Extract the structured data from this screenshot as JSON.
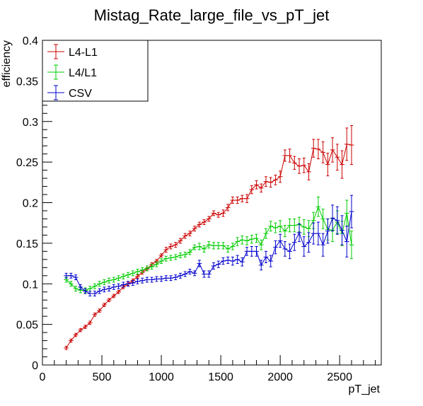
{
  "chart_data": {
    "type": "line",
    "title": "Mistag_Rate_large_file_vs_pT_jet",
    "xlabel": "pT_jet",
    "ylabel": "efficiency",
    "xlim": [
      0,
      2850
    ],
    "ylim": [
      0,
      0.4
    ],
    "x_ticks": [
      0,
      500,
      1000,
      1500,
      2000,
      2500
    ],
    "x_tick_labels": [
      "0",
      "500",
      "1000",
      "1500",
      "2000",
      "2500"
    ],
    "y_ticks": [
      0,
      0.05,
      0.1,
      0.15,
      0.2,
      0.25,
      0.3,
      0.35,
      0.4
    ],
    "y_tick_labels": [
      "0",
      "0.05",
      "0.1",
      "0.15",
      "0.2",
      "0.25",
      "0.3",
      "0.35",
      "0.4"
    ],
    "legend_position": "top-left",
    "grid": false,
    "x_bin_halfwidth": 20,
    "series": [
      {
        "name": "L4-L1",
        "color": "#cc0000",
        "points": [
          [
            200,
            0.021,
            0.002
          ],
          [
            240,
            0.03,
            0.002
          ],
          [
            280,
            0.037,
            0.002
          ],
          [
            320,
            0.043,
            0.002
          ],
          [
            360,
            0.047,
            0.002
          ],
          [
            400,
            0.052,
            0.002
          ],
          [
            440,
            0.062,
            0.002
          ],
          [
            480,
            0.067,
            0.002
          ],
          [
            520,
            0.074,
            0.002
          ],
          [
            560,
            0.08,
            0.002
          ],
          [
            600,
            0.085,
            0.002
          ],
          [
            640,
            0.09,
            0.002
          ],
          [
            680,
            0.096,
            0.002
          ],
          [
            720,
            0.1,
            0.002
          ],
          [
            760,
            0.104,
            0.002
          ],
          [
            800,
            0.109,
            0.002
          ],
          [
            840,
            0.114,
            0.002
          ],
          [
            880,
            0.118,
            0.002
          ],
          [
            920,
            0.124,
            0.002
          ],
          [
            960,
            0.128,
            0.002
          ],
          [
            1000,
            0.135,
            0.002
          ],
          [
            1040,
            0.142,
            0.003
          ],
          [
            1080,
            0.146,
            0.003
          ],
          [
            1120,
            0.148,
            0.003
          ],
          [
            1160,
            0.153,
            0.003
          ],
          [
            1200,
            0.159,
            0.003
          ],
          [
            1240,
            0.162,
            0.003
          ],
          [
            1280,
            0.168,
            0.003
          ],
          [
            1320,
            0.173,
            0.003
          ],
          [
            1360,
            0.176,
            0.003
          ],
          [
            1400,
            0.18,
            0.003
          ],
          [
            1440,
            0.187,
            0.003
          ],
          [
            1480,
            0.185,
            0.003
          ],
          [
            1520,
            0.187,
            0.004
          ],
          [
            1560,
            0.194,
            0.004
          ],
          [
            1600,
            0.203,
            0.004
          ],
          [
            1640,
            0.203,
            0.004
          ],
          [
            1680,
            0.205,
            0.004
          ],
          [
            1720,
            0.205,
            0.005
          ],
          [
            1760,
            0.216,
            0.005
          ],
          [
            1800,
            0.222,
            0.005
          ],
          [
            1840,
            0.218,
            0.005
          ],
          [
            1880,
            0.226,
            0.006
          ],
          [
            1920,
            0.225,
            0.006
          ],
          [
            1960,
            0.228,
            0.006
          ],
          [
            2000,
            0.232,
            0.007
          ],
          [
            2040,
            0.258,
            0.007
          ],
          [
            2080,
            0.258,
            0.008
          ],
          [
            2120,
            0.249,
            0.008
          ],
          [
            2160,
            0.245,
            0.009
          ],
          [
            2200,
            0.246,
            0.009
          ],
          [
            2240,
            0.238,
            0.01
          ],
          [
            2280,
            0.267,
            0.011
          ],
          [
            2320,
            0.266,
            0.012
          ],
          [
            2360,
            0.262,
            0.013
          ],
          [
            2400,
            0.247,
            0.014
          ],
          [
            2440,
            0.265,
            0.015
          ],
          [
            2480,
            0.256,
            0.016
          ],
          [
            2520,
            0.247,
            0.017
          ],
          [
            2560,
            0.272,
            0.02
          ],
          [
            2600,
            0.271,
            0.024
          ]
        ]
      },
      {
        "name": "L4/L1",
        "color": "#00cc00",
        "points": [
          [
            200,
            0.105,
            0.003
          ],
          [
            240,
            0.1,
            0.003
          ],
          [
            280,
            0.094,
            0.003
          ],
          [
            320,
            0.092,
            0.003
          ],
          [
            360,
            0.092,
            0.003
          ],
          [
            400,
            0.094,
            0.003
          ],
          [
            440,
            0.097,
            0.003
          ],
          [
            480,
            0.1,
            0.003
          ],
          [
            520,
            0.102,
            0.003
          ],
          [
            560,
            0.104,
            0.003
          ],
          [
            600,
            0.105,
            0.003
          ],
          [
            640,
            0.107,
            0.003
          ],
          [
            680,
            0.109,
            0.003
          ],
          [
            720,
            0.111,
            0.003
          ],
          [
            760,
            0.113,
            0.003
          ],
          [
            800,
            0.115,
            0.003
          ],
          [
            840,
            0.117,
            0.003
          ],
          [
            880,
            0.119,
            0.003
          ],
          [
            920,
            0.121,
            0.003
          ],
          [
            960,
            0.124,
            0.003
          ],
          [
            1000,
            0.128,
            0.003
          ],
          [
            1040,
            0.131,
            0.003
          ],
          [
            1080,
            0.132,
            0.003
          ],
          [
            1120,
            0.133,
            0.003
          ],
          [
            1160,
            0.135,
            0.003
          ],
          [
            1200,
            0.136,
            0.003
          ],
          [
            1240,
            0.139,
            0.003
          ],
          [
            1280,
            0.145,
            0.003
          ],
          [
            1320,
            0.146,
            0.004
          ],
          [
            1360,
            0.143,
            0.004
          ],
          [
            1400,
            0.148,
            0.004
          ],
          [
            1440,
            0.147,
            0.004
          ],
          [
            1480,
            0.147,
            0.004
          ],
          [
            1520,
            0.147,
            0.004
          ],
          [
            1560,
            0.143,
            0.004
          ],
          [
            1600,
            0.146,
            0.004
          ],
          [
            1640,
            0.152,
            0.005
          ],
          [
            1680,
            0.154,
            0.005
          ],
          [
            1720,
            0.153,
            0.005
          ],
          [
            1760,
            0.155,
            0.005
          ],
          [
            1800,
            0.156,
            0.005
          ],
          [
            1840,
            0.148,
            0.006
          ],
          [
            1880,
            0.162,
            0.006
          ],
          [
            1920,
            0.171,
            0.006
          ],
          [
            1960,
            0.169,
            0.006
          ],
          [
            2000,
            0.171,
            0.007
          ],
          [
            2040,
            0.165,
            0.007
          ],
          [
            2080,
            0.172,
            0.008
          ],
          [
            2120,
            0.172,
            0.008
          ],
          [
            2160,
            0.173,
            0.009
          ],
          [
            2200,
            0.17,
            0.009
          ],
          [
            2240,
            0.168,
            0.01
          ],
          [
            2280,
            0.178,
            0.01
          ],
          [
            2320,
            0.195,
            0.012
          ],
          [
            2360,
            0.18,
            0.012
          ],
          [
            2400,
            0.167,
            0.013
          ],
          [
            2440,
            0.166,
            0.014
          ],
          [
            2480,
            0.176,
            0.014
          ],
          [
            2520,
            0.162,
            0.015
          ],
          [
            2560,
            0.187,
            0.016
          ],
          [
            2600,
            0.148,
            0.017
          ]
        ]
      },
      {
        "name": "CSV",
        "color": "#0000cc",
        "points": [
          [
            200,
            0.11,
            0.003
          ],
          [
            240,
            0.11,
            0.003
          ],
          [
            280,
            0.108,
            0.003
          ],
          [
            320,
            0.096,
            0.003
          ],
          [
            360,
            0.091,
            0.003
          ],
          [
            400,
            0.088,
            0.003
          ],
          [
            440,
            0.088,
            0.003
          ],
          [
            480,
            0.091,
            0.003
          ],
          [
            520,
            0.093,
            0.003
          ],
          [
            560,
            0.094,
            0.003
          ],
          [
            600,
            0.096,
            0.003
          ],
          [
            640,
            0.097,
            0.003
          ],
          [
            680,
            0.099,
            0.003
          ],
          [
            720,
            0.1,
            0.003
          ],
          [
            760,
            0.101,
            0.003
          ],
          [
            800,
            0.103,
            0.003
          ],
          [
            840,
            0.104,
            0.003
          ],
          [
            880,
            0.105,
            0.003
          ],
          [
            920,
            0.105,
            0.003
          ],
          [
            960,
            0.106,
            0.003
          ],
          [
            1000,
            0.106,
            0.003
          ],
          [
            1040,
            0.107,
            0.003
          ],
          [
            1080,
            0.107,
            0.003
          ],
          [
            1120,
            0.108,
            0.003
          ],
          [
            1160,
            0.11,
            0.003
          ],
          [
            1200,
            0.112,
            0.003
          ],
          [
            1240,
            0.115,
            0.003
          ],
          [
            1280,
            0.113,
            0.003
          ],
          [
            1320,
            0.125,
            0.004
          ],
          [
            1360,
            0.112,
            0.004
          ],
          [
            1400,
            0.112,
            0.004
          ],
          [
            1440,
            0.122,
            0.004
          ],
          [
            1480,
            0.124,
            0.004
          ],
          [
            1520,
            0.128,
            0.004
          ],
          [
            1560,
            0.129,
            0.004
          ],
          [
            1600,
            0.128,
            0.005
          ],
          [
            1640,
            0.13,
            0.005
          ],
          [
            1680,
            0.127,
            0.005
          ],
          [
            1720,
            0.14,
            0.005
          ],
          [
            1760,
            0.14,
            0.006
          ],
          [
            1800,
            0.14,
            0.006
          ],
          [
            1840,
            0.123,
            0.006
          ],
          [
            1880,
            0.133,
            0.007
          ],
          [
            1920,
            0.128,
            0.007
          ],
          [
            1960,
            0.145,
            0.008
          ],
          [
            2000,
            0.153,
            0.008
          ],
          [
            2040,
            0.143,
            0.009
          ],
          [
            2080,
            0.14,
            0.009
          ],
          [
            2120,
            0.151,
            0.01
          ],
          [
            2160,
            0.163,
            0.011
          ],
          [
            2200,
            0.146,
            0.012
          ],
          [
            2240,
            0.151,
            0.012
          ],
          [
            2280,
            0.162,
            0.013
          ],
          [
            2320,
            0.162,
            0.014
          ],
          [
            2360,
            0.148,
            0.014
          ],
          [
            2400,
            0.165,
            0.015
          ],
          [
            2440,
            0.181,
            0.016
          ],
          [
            2480,
            0.178,
            0.017
          ],
          [
            2520,
            0.166,
            0.018
          ],
          [
            2560,
            0.152,
            0.019
          ],
          [
            2600,
            0.189,
            0.02
          ]
        ]
      }
    ]
  }
}
